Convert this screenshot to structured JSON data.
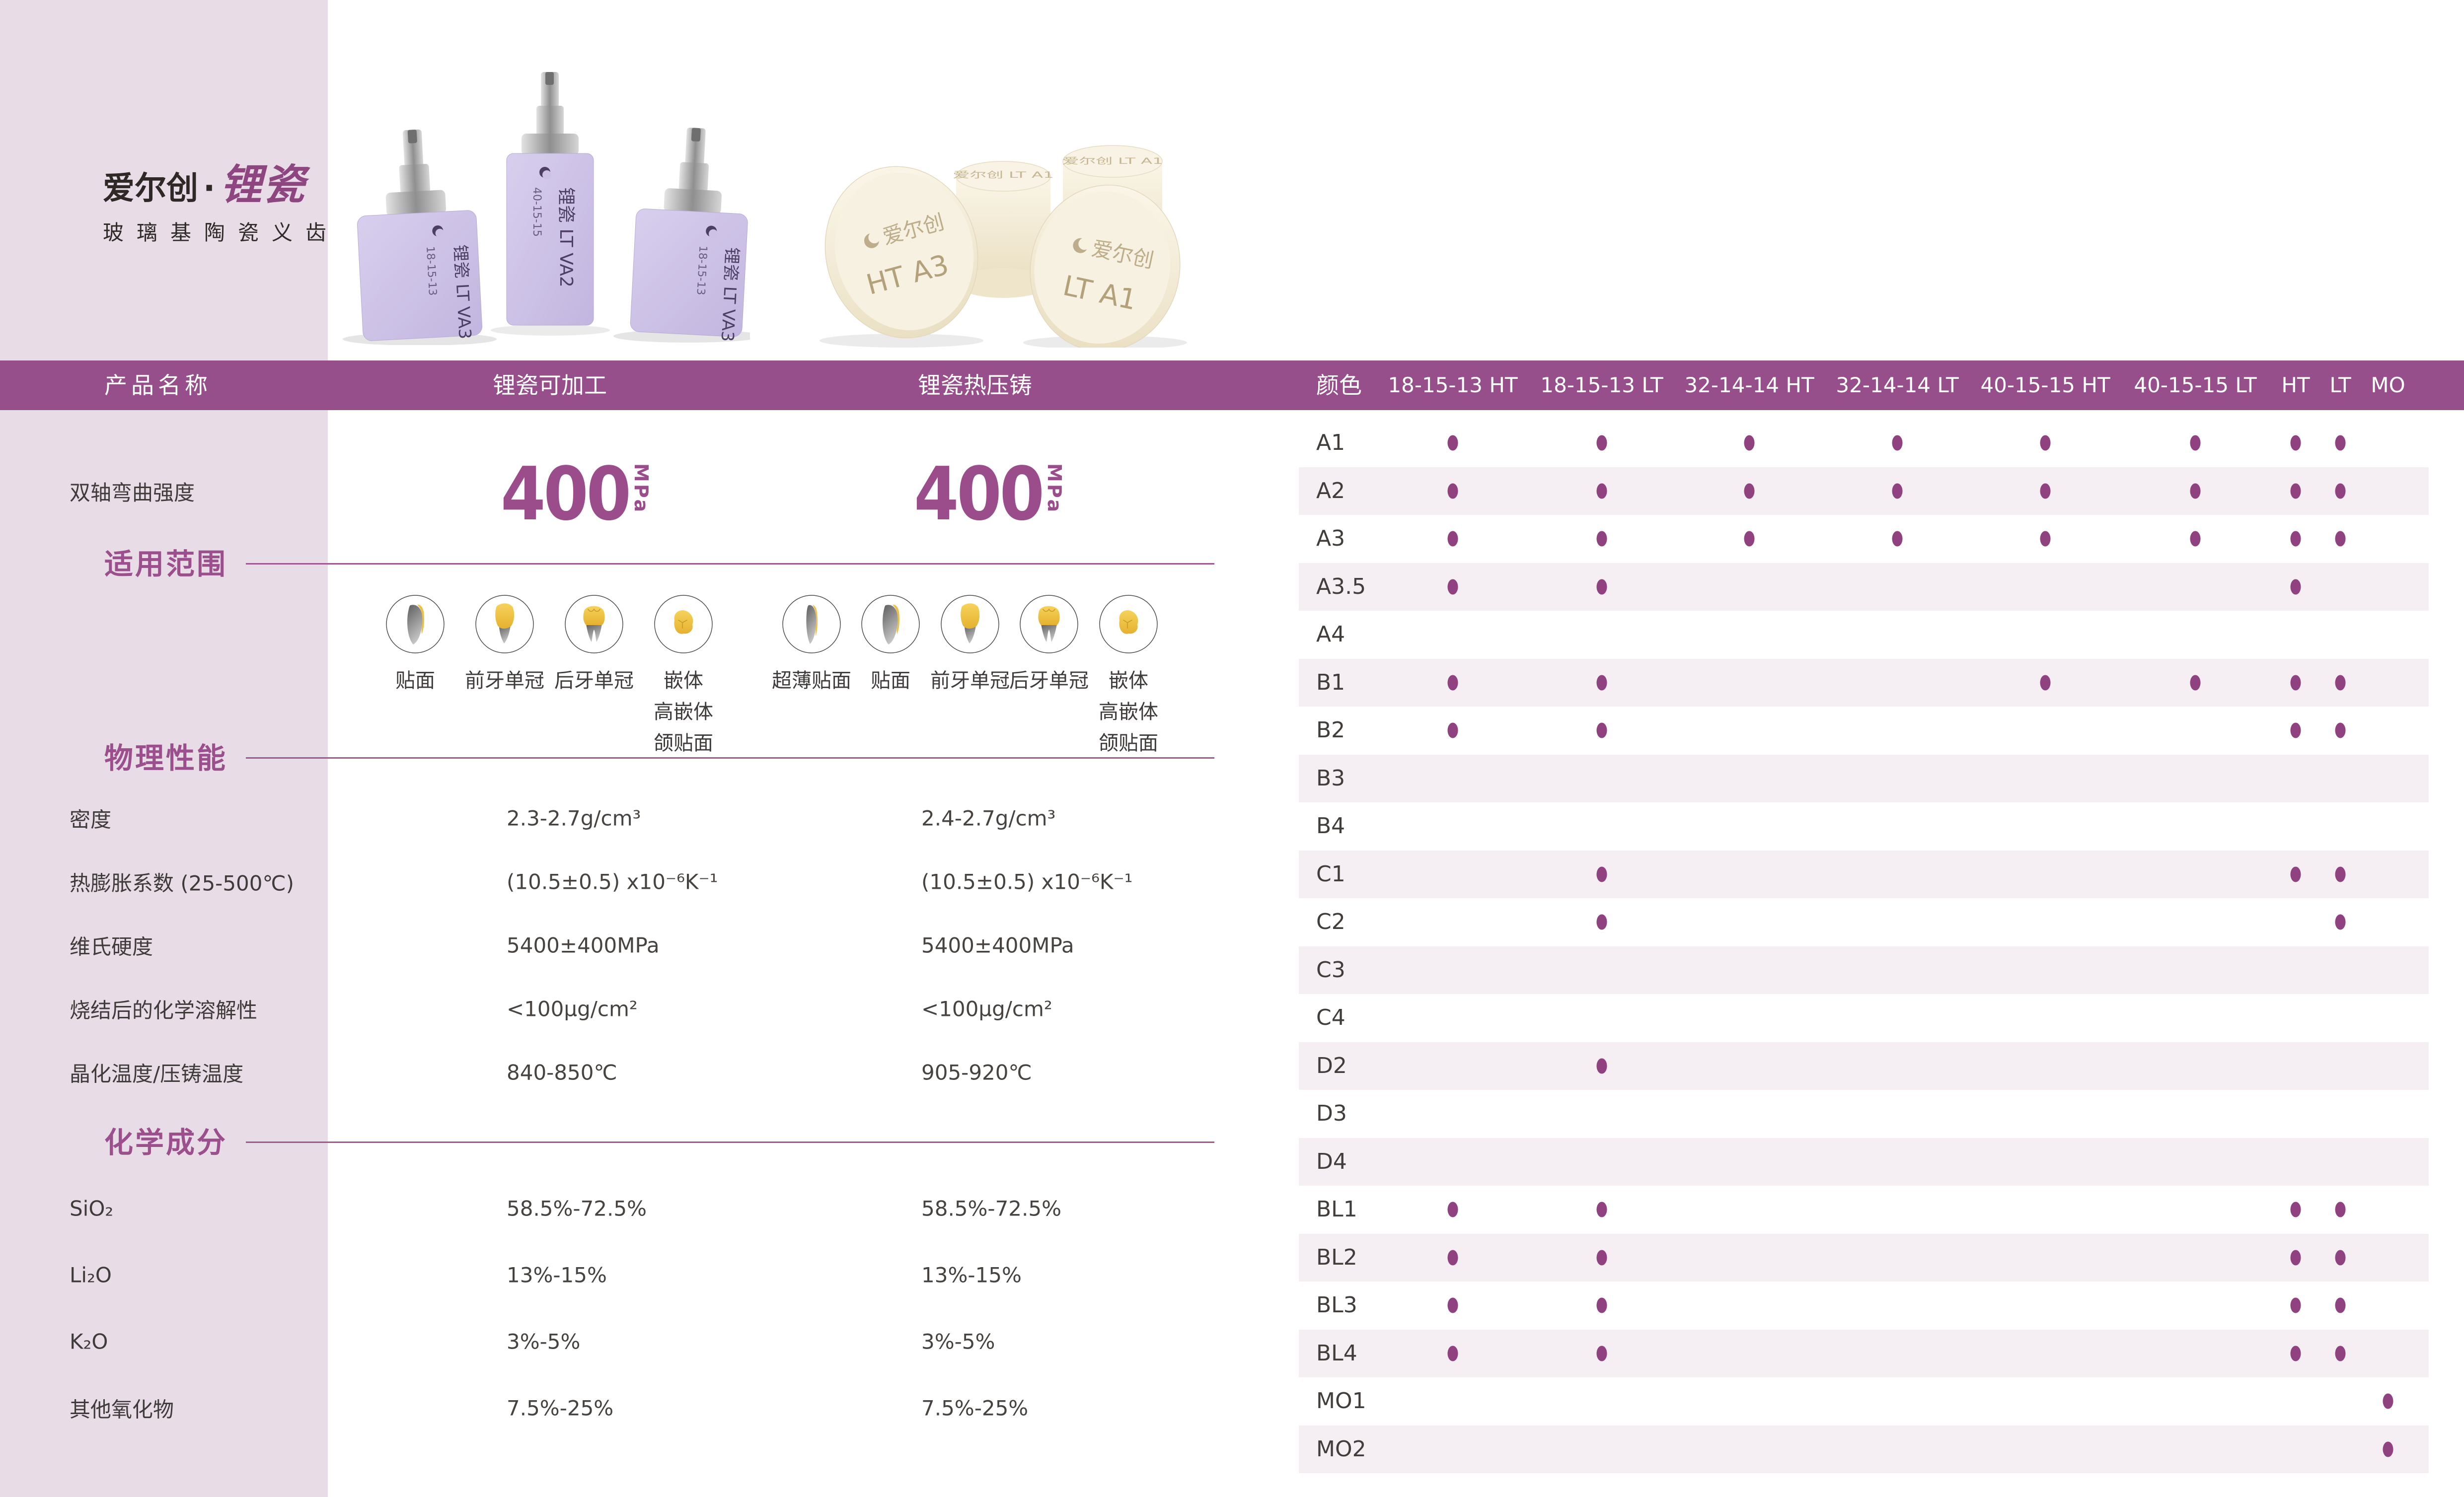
{
  "brand": {
    "name": "爱尔创",
    "separator": "·",
    "product": "锂瓷",
    "subtitle": "玻璃基陶瓷义齿"
  },
  "table_header": {
    "product_name": "产品名称",
    "machinable": "锂瓷可加工",
    "pressable": "锂瓷热压铸",
    "color": "颜色",
    "size_columns": [
      "18-15-13 HT",
      "18-15-13 LT",
      "32-14-14 HT",
      "32-14-14 LT",
      "40-15-15 HT",
      "40-15-15 LT",
      "HT",
      "LT",
      "MO"
    ]
  },
  "strength_row": {
    "label": "双轴弯曲强度",
    "machinable_value": "400",
    "machinable_unit": "MPa",
    "pressable_value": "400",
    "pressable_unit": "MPa"
  },
  "section_titles": {
    "scope": "适用范围",
    "physical": "物理性能",
    "chemical": "化学成分"
  },
  "applications": {
    "machinable": [
      {
        "label": "贴面",
        "lines": [
          "贴面"
        ],
        "shape": "veneer"
      },
      {
        "label": "前牙单冠",
        "lines": [
          "前牙单冠"
        ],
        "shape": "anterior-crown"
      },
      {
        "label": "后牙单冠",
        "lines": [
          "后牙单冠"
        ],
        "shape": "posterior-crown"
      },
      {
        "label": "嵌体 高嵌体 颌贴面",
        "lines": [
          "嵌体",
          "高嵌体",
          "颌贴面"
        ],
        "shape": "inlay"
      }
    ],
    "pressable": [
      {
        "label": "超薄贴面",
        "lines": [
          "超薄贴面"
        ],
        "shape": "thin-veneer"
      },
      {
        "label": "贴面",
        "lines": [
          "贴面"
        ],
        "shape": "veneer"
      },
      {
        "label": "前牙单冠",
        "lines": [
          "前牙单冠"
        ],
        "shape": "anterior-crown"
      },
      {
        "label": "后牙单冠",
        "lines": [
          "后牙单冠"
        ],
        "shape": "posterior-crown"
      },
      {
        "label": "嵌体 高嵌体 颌贴面",
        "lines": [
          "嵌体",
          "高嵌体",
          "颌贴面"
        ],
        "shape": "inlay"
      }
    ]
  },
  "physical_rows": [
    {
      "label": "密度",
      "machinable": "2.3-2.7g/cm³",
      "pressable": "2.4-2.7g/cm³"
    },
    {
      "label": "热膨胀系数 (25-500℃)",
      "machinable": "(10.5±0.5) x10⁻⁶K⁻¹",
      "pressable": "(10.5±0.5) x10⁻⁶K⁻¹"
    },
    {
      "label": "维氏硬度",
      "machinable": "5400±400MPa",
      "pressable": "5400±400MPa"
    },
    {
      "label": "烧结后的化学溶解性",
      "machinable": "<100μg/cm²",
      "pressable": "<100μg/cm²"
    },
    {
      "label": "晶化温度/压铸温度",
      "machinable": "840-850℃",
      "pressable": "905-920℃"
    }
  ],
  "chemical_rows": [
    {
      "label": "SiO₂",
      "machinable": "58.5%-72.5%",
      "pressable": "58.5%-72.5%"
    },
    {
      "label": "Li₂O",
      "machinable": "13%-15%",
      "pressable": "13%-15%"
    },
    {
      "label": "K₂O",
      "machinable": "3%-5%",
      "pressable": "3%-5%"
    },
    {
      "label": "其他氧化物",
      "machinable": "7.5%-25%",
      "pressable": "7.5%-25%"
    }
  ],
  "shade_rows": [
    {
      "shade": "A1",
      "dots": [
        1,
        1,
        1,
        1,
        1,
        1,
        1,
        1,
        0
      ]
    },
    {
      "shade": "A2",
      "dots": [
        1,
        1,
        1,
        1,
        1,
        1,
        1,
        1,
        0
      ]
    },
    {
      "shade": "A3",
      "dots": [
        1,
        1,
        1,
        1,
        1,
        1,
        1,
        1,
        0
      ]
    },
    {
      "shade": "A3.5",
      "dots": [
        1,
        1,
        0,
        0,
        0,
        0,
        1,
        0,
        0
      ]
    },
    {
      "shade": "A4",
      "dots": [
        0,
        0,
        0,
        0,
        0,
        0,
        0,
        0,
        0
      ]
    },
    {
      "shade": "B1",
      "dots": [
        1,
        1,
        0,
        0,
        1,
        1,
        1,
        1,
        0
      ]
    },
    {
      "shade": "B2",
      "dots": [
        1,
        1,
        0,
        0,
        0,
        0,
        1,
        1,
        0
      ]
    },
    {
      "shade": "B3",
      "dots": [
        0,
        0,
        0,
        0,
        0,
        0,
        0,
        0,
        0
      ]
    },
    {
      "shade": "B4",
      "dots": [
        0,
        0,
        0,
        0,
        0,
        0,
        0,
        0,
        0
      ]
    },
    {
      "shade": "C1",
      "dots": [
        0,
        1,
        0,
        0,
        0,
        0,
        1,
        1,
        0
      ]
    },
    {
      "shade": "C2",
      "dots": [
        0,
        1,
        0,
        0,
        0,
        0,
        0,
        1,
        0
      ]
    },
    {
      "shade": "C3",
      "dots": [
        0,
        0,
        0,
        0,
        0,
        0,
        0,
        0,
        0
      ]
    },
    {
      "shade": "C4",
      "dots": [
        0,
        0,
        0,
        0,
        0,
        0,
        0,
        0,
        0
      ]
    },
    {
      "shade": "D2",
      "dots": [
        0,
        1,
        0,
        0,
        0,
        0,
        0,
        0,
        0
      ]
    },
    {
      "shade": "D3",
      "dots": [
        0,
        0,
        0,
        0,
        0,
        0,
        0,
        0,
        0
      ]
    },
    {
      "shade": "D4",
      "dots": [
        0,
        0,
        0,
        0,
        0,
        0,
        0,
        0,
        0
      ]
    },
    {
      "shade": "BL1",
      "dots": [
        1,
        1,
        0,
        0,
        0,
        0,
        1,
        1,
        0
      ]
    },
    {
      "shade": "BL2",
      "dots": [
        1,
        1,
        0,
        0,
        0,
        0,
        1,
        1,
        0
      ]
    },
    {
      "shade": "BL3",
      "dots": [
        1,
        1,
        0,
        0,
        0,
        0,
        1,
        1,
        0
      ]
    },
    {
      "shade": "BL4",
      "dots": [
        1,
        1,
        0,
        0,
        0,
        0,
        1,
        1,
        0
      ]
    },
    {
      "shade": "MO1",
      "dots": [
        0,
        0,
        0,
        0,
        0,
        0,
        0,
        0,
        1
      ]
    },
    {
      "shade": "MO2",
      "dots": [
        0,
        0,
        0,
        0,
        0,
        0,
        0,
        0,
        1
      ]
    }
  ],
  "product_photos": {
    "blocks": {
      "left": {
        "label": "锂瓷 LT VA3",
        "size": "18-15-13"
      },
      "center": {
        "label": "锂瓷 LT VA2",
        "size": "40-15-15"
      },
      "right": {
        "label": "锂瓷 LT VA3",
        "size": "18-15-13"
      }
    },
    "ingots": {
      "back_left_top": "爱尔创 LT A1",
      "back_right_top": "爱尔创 LT A1",
      "front_left": {
        "brand": "爱尔创",
        "shade": "HT A3"
      },
      "front_right": {
        "brand": "爱尔创",
        "shade": "LT A1"
      }
    }
  },
  "colors": {
    "header_purple": "#974f8b",
    "accent_purple": "#9b4f8d",
    "dot_purple": "#8f4180",
    "sidebar_pink": "#e8dce7",
    "row_stripe": "#f5eff4",
    "tooth_yellow": "#eec23f",
    "tooth_gray": "#8b8b8b",
    "block_lilac": "#c9bde3",
    "ingot_cream": "#f4eedd"
  }
}
